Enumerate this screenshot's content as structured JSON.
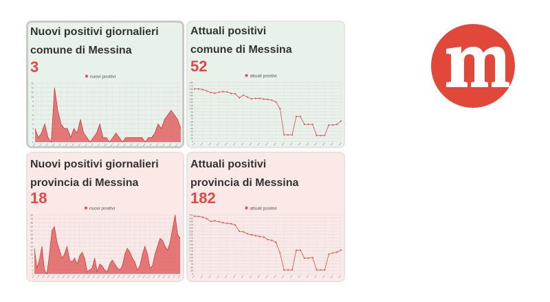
{
  "panels": [
    {
      "title_line1": "Nuovi positivi giornalieri",
      "title_line2": "comune di Messina",
      "value": "3",
      "theme": "green",
      "chart_data": {
        "type": "area",
        "series": [
          {
            "name": "nuovi positivi",
            "values": [
              3,
              1,
              2,
              4,
              1,
              0,
              12,
              7,
              4,
              3,
              3,
              1,
              3,
              2,
              5,
              2,
              1,
              0,
              1,
              2,
              4,
              1,
              1,
              0,
              1,
              2,
              1,
              0,
              1,
              1,
              1,
              1,
              1,
              1,
              0,
              1,
              1,
              2,
              4,
              3,
              5,
              6,
              7,
              6,
              5,
              3
            ]
          }
        ],
        "ylim": [
          0,
          13
        ],
        "yticks": [
          0,
          1,
          2,
          3,
          4,
          5,
          6,
          7,
          8,
          9,
          10,
          11,
          12,
          13
        ],
        "color": "#e05a5a"
      }
    },
    {
      "title_line1": "Attuali positivi",
      "title_line2": "comune di Messina",
      "value": "52",
      "theme": "green",
      "chart_data": {
        "type": "line",
        "series": [
          {
            "name": "attuali positivi",
            "values": [
              160,
              160,
              158,
              154,
              149,
              147,
              150,
              152,
              151,
              146,
              145,
              133,
              141,
              135,
              130,
              131,
              131,
              129,
              128,
              126,
              120,
              100,
              20,
              20,
              20,
              76,
              76,
              52,
              52,
              52,
              18,
              18,
              18,
              50,
              50,
              52,
              62
            ]
          }
        ],
        "ylim": [
          0,
          180
        ],
        "yticks": [
          0,
          10,
          20,
          30,
          40,
          50,
          60,
          70,
          80,
          90,
          100,
          110,
          120,
          130,
          140,
          150,
          160,
          170,
          180
        ],
        "color": "#e05a5a"
      }
    },
    {
      "title_line1": "Nuovi positivi giornalieri",
      "title_line2": "provincia di Messina",
      "value": "18",
      "theme": "pink",
      "chart_data": {
        "type": "area",
        "series": [
          {
            "name": "nuovi positivi",
            "values": [
              13,
              3,
              7,
              14,
              2,
              0,
              10,
              22,
              24,
              16,
              12,
              8,
              10,
              14,
              7,
              6,
              8,
              5,
              9,
              11,
              8,
              1,
              2,
              3,
              8,
              1,
              5,
              4,
              2,
              1,
              5,
              7,
              5,
              3,
              2,
              4,
              10,
              13,
              11,
              8,
              6,
              2,
              4,
              10,
              14,
              10,
              3,
              4,
              10,
              14,
              18,
              17,
              14,
              12,
              16,
              23,
              30,
              20,
              18
            ]
          }
        ],
        "ylim": [
          0,
          30
        ],
        "yticks": [
          0,
          2,
          4,
          6,
          8,
          10,
          12,
          14,
          16,
          18,
          20,
          22,
          24,
          26,
          28,
          30
        ],
        "color": "#e05a5a"
      }
    },
    {
      "title_line1": "Attuali positivi",
      "title_line2": "provincia di Messina",
      "value": "182",
      "theme": "pink",
      "chart_data": {
        "type": "line",
        "series": [
          {
            "name": "attuali positivi",
            "values": [
              440,
              438,
              432,
              420,
              400,
              405,
              398,
              390,
              385,
              382,
              372,
              325,
              320,
              305,
              298,
              292,
              285,
              280,
              262,
              255,
              240,
              160,
              30,
              30,
              30,
              180,
              180,
              120,
              120,
              125,
              30,
              30,
              30,
              150,
              160,
              165,
              182
            ]
          }
        ],
        "ylim": [
          0,
          450
        ],
        "yticks": [
          0,
          25,
          50,
          75,
          100,
          125,
          150,
          175,
          200,
          225,
          250,
          275,
          300,
          325,
          350,
          375,
          400,
          425,
          450
        ],
        "color": "#e05a5a"
      }
    }
  ],
  "logo": {
    "letter": "m",
    "color": "#e1483a",
    "icon": "messina-logo-icon"
  }
}
